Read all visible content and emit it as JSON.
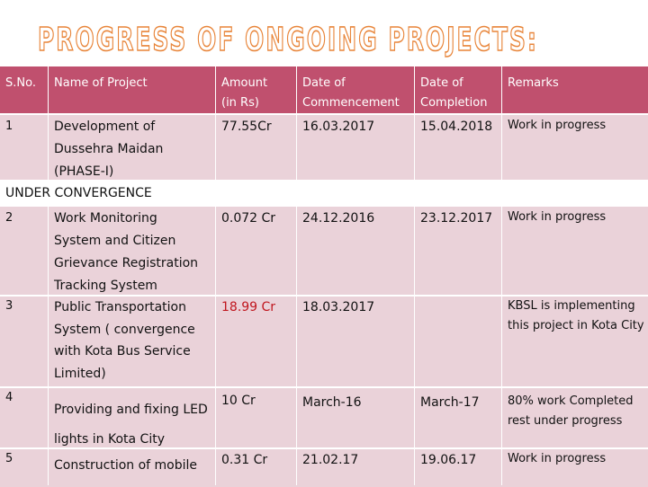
{
  "title": "PROGRESS OF ONGOING PROJECTS:",
  "headers": {
    "sno": "S.No.",
    "name": "Name of Project",
    "amount_l1": "Amount",
    "amount_l2": "(in Rs)",
    "start_l1": "Date of",
    "start_l2": "Commencement",
    "end_l1": "Date of",
    "end_l2": "Completion",
    "remarks": "Remarks"
  },
  "rows": [
    {
      "sno": "1",
      "name": [
        "Development of",
        "Dussehra Maidan",
        "(PHASE-I)"
      ],
      "amount": "77.55Cr",
      "start": "16.03.2017",
      "end": "15.04.2018",
      "remarks": [
        "Work in progress"
      ]
    },
    {
      "sno": "2",
      "name": [
        "Work Monitoring",
        "System and Citizen",
        "Grievance Registration",
        "Tracking System"
      ],
      "amount": "0.072 Cr",
      "start": "24.12.2016",
      "end": "23.12.2017",
      "remarks": [
        "Work in progress"
      ]
    },
    {
      "sno": "3",
      "name": [
        "Public Transportation",
        "System ( convergence",
        "with Kota Bus Service",
        "Limited)"
      ],
      "amount": "18.99 Cr",
      "start": "18.03.2017",
      "end": "",
      "remarks": [
        "KBSL is implementing",
        "this project in Kota City"
      ]
    },
    {
      "sno": "4",
      "name": [
        "Providing and fixing LED",
        "lights in Kota City"
      ],
      "amount": "10 Cr",
      "start": "March-16",
      "end": "March-17",
      "remarks": [
        "80% work Completed",
        "rest under progress"
      ]
    },
    {
      "sno": "5",
      "name": [
        "Construction of mobile"
      ],
      "amount": "0.31 Cr",
      "start": "21.02.17",
      "end": "19.06.17",
      "remarks": [
        "Work in progress"
      ]
    }
  ],
  "section_label": "UNDER CONVERGENCE",
  "colors": {
    "header_bg": "#c0506e",
    "row_bg": "#ead2d9",
    "title_outline": "#e8853a",
    "highlight": "#c0161e"
  }
}
